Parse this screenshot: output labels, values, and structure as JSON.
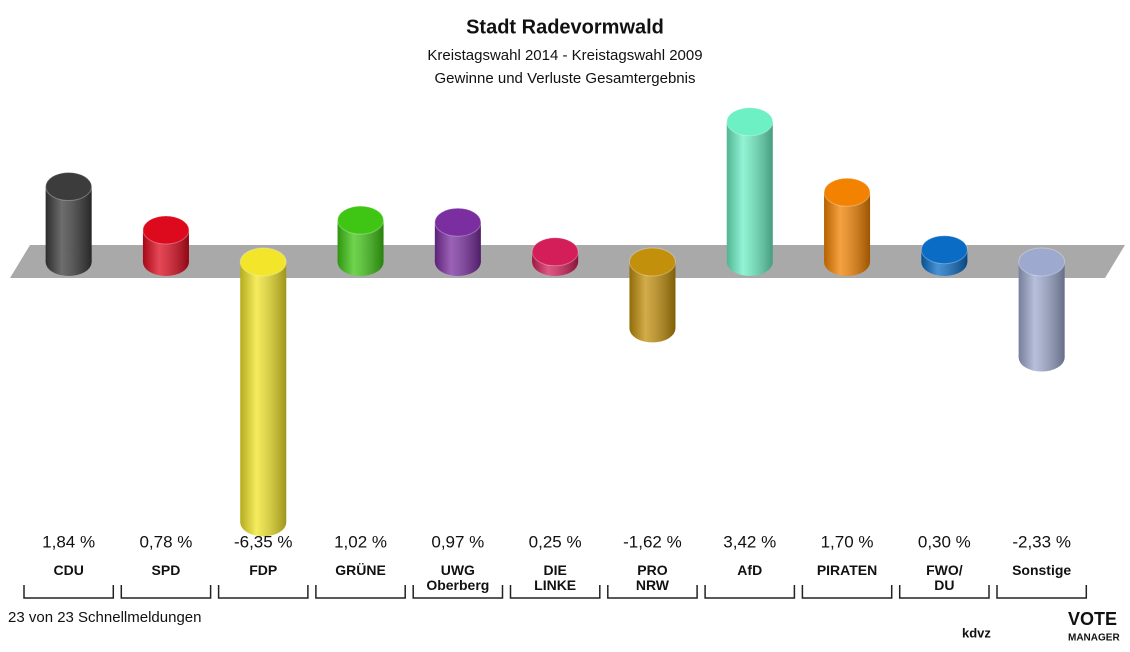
{
  "chart_data": {
    "type": "bar",
    "title": "Stadt Radevormwald",
    "subtitle": [
      "Kreistagswahl 2014 - Kreistagswahl 2009",
      "Gewinne und Verluste Gesamtergebnis"
    ],
    "categories": [
      "CDU",
      "SPD",
      "FDP",
      "GRÜNE",
      "UWG\nOberberg",
      "DIE\nLINKE",
      "PRO\nNRW",
      "AfD",
      "PIRATEN",
      "FWO/\nDU",
      "Sonstige"
    ],
    "values": [
      1.84,
      0.78,
      -6.35,
      1.02,
      0.97,
      0.25,
      -1.62,
      3.42,
      1.7,
      0.3,
      -2.33
    ],
    "value_labels": [
      "1,84 %",
      "0,78 %",
      "-6,35 %",
      "1,02 %",
      "0,97 %",
      "0,25 %",
      "-1,62 %",
      "3,42 %",
      "1,70 %",
      "0,30 %",
      "-2,33 %"
    ],
    "colors": [
      "#3c3c3c",
      "#dd0a1e",
      "#f2e52a",
      "#3fc614",
      "#7a2ea0",
      "#d41e5a",
      "#c3900c",
      "#6cf0c4",
      "#f28200",
      "#0a6cc4",
      "#9ea9cf"
    ],
    "footnote": "23 von 23 Schnellmeldungen",
    "logos": [
      "kdvz",
      "VOTE",
      "MANAGER"
    ]
  }
}
